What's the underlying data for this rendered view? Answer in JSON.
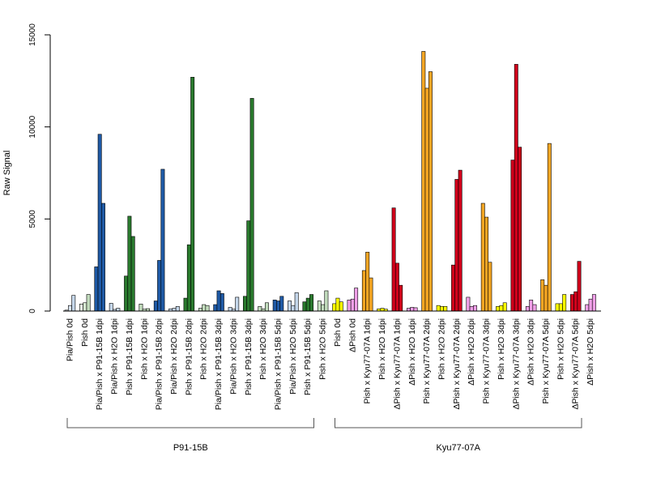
{
  "chart_data": {
    "type": "bar",
    "ylabel": "Raw Signal",
    "ylim": [
      0,
      15000
    ],
    "yticks": [
      0,
      5000,
      10000,
      15000
    ],
    "grid": false,
    "groups": [
      {
        "name": "P91-15B",
        "bars": [
          {
            "label": "Pia/Pish 0d",
            "values": [
              50,
              300,
              850
            ],
            "colors": [
              "#f0f4fa",
              "#dbe6f2",
              "#c4d6ea"
            ]
          },
          {
            "label": "Pish 0d",
            "values": [
              380,
              450,
              900
            ],
            "colors": [
              "#eaf3e8",
              "#d6e9d2",
              "#c2dcbd"
            ]
          },
          {
            "label": "Pia/Pish x P91-15B 1dpi",
            "values": [
              2400,
              9600,
              5850
            ],
            "colors": [
              "#1f5aa6",
              "#1f5aa6",
              "#1f5aa6"
            ]
          },
          {
            "label": "Pia/Pish x H2O 1dpi",
            "values": [
              420,
              90,
              150
            ],
            "colors": [
              "#c4d6ea",
              "#c4d6ea",
              "#c4d6ea"
            ]
          },
          {
            "label": "Pish x P91-15B 1dpi",
            "values": [
              1900,
              5150,
              4050
            ],
            "colors": [
              "#2a7a2e",
              "#2a7a2e",
              "#2a7a2e"
            ]
          },
          {
            "label": "Pish x H2O 1dpi",
            "values": [
              380,
              100,
              130
            ],
            "colors": [
              "#c2dcbd",
              "#c2dcbd",
              "#c2dcbd"
            ]
          },
          {
            "label": "Pia/Pish x P91-15B 2dpi",
            "values": [
              550,
              2750,
              7700
            ],
            "colors": [
              "#1f5aa6",
              "#1f5aa6",
              "#1f5aa6"
            ]
          },
          {
            "label": "Pia/Pish x H2O 2dpi",
            "values": [
              120,
              150,
              250
            ],
            "colors": [
              "#c4d6ea",
              "#c4d6ea",
              "#c4d6ea"
            ]
          },
          {
            "label": "Pish x P91-15B 2dpi",
            "values": [
              700,
              3600,
              12700
            ],
            "colors": [
              "#2a7a2e",
              "#2a7a2e",
              "#2a7a2e"
            ]
          },
          {
            "label": "Pish x H2O 2dpi",
            "values": [
              150,
              350,
              300
            ],
            "colors": [
              "#c2dcbd",
              "#c2dcbd",
              "#c2dcbd"
            ]
          },
          {
            "label": "Pia/Pish x P91-15B 3dpi",
            "values": [
              350,
              1100,
              950
            ],
            "colors": [
              "#1f5aa6",
              "#1f5aa6",
              "#1f5aa6"
            ]
          },
          {
            "label": "Pia/Pish x H2O 3dpi",
            "values": [
              200,
              100,
              750
            ],
            "colors": [
              "#c4d6ea",
              "#c4d6ea",
              "#c4d6ea"
            ]
          },
          {
            "label": "Pish x P91-15B 3dpi",
            "values": [
              800,
              4900,
              11550
            ],
            "colors": [
              "#2a7a2e",
              "#2a7a2e",
              "#2a7a2e"
            ]
          },
          {
            "label": "Pish x H2O 3dpi",
            "values": [
              250,
              120,
              450
            ],
            "colors": [
              "#c2dcbd",
              "#c2dcbd",
              "#c2dcbd"
            ]
          },
          {
            "label": "Pia/Pish x P91-15B 5dpi",
            "values": [
              600,
              550,
              800
            ],
            "colors": [
              "#1f5aa6",
              "#1f5aa6",
              "#1f5aa6"
            ]
          },
          {
            "label": "Pia/Pish x H2O 5dpi",
            "values": [
              550,
              300,
              1000
            ],
            "colors": [
              "#c4d6ea",
              "#c4d6ea",
              "#c4d6ea"
            ]
          },
          {
            "label": "Pish x P91-15B 5dpi",
            "values": [
              500,
              700,
              900
            ],
            "colors": [
              "#2a7a2e",
              "#2a7a2e",
              "#2a7a2e"
            ]
          },
          {
            "label": "Pish x H2O 5dpi",
            "values": [
              550,
              350,
              1100
            ],
            "colors": [
              "#c2dcbd",
              "#c2dcbd",
              "#c2dcbd"
            ]
          }
        ]
      },
      {
        "name": "Kyu77-07A",
        "bars": [
          {
            "label": "Pish 0d",
            "values": [
              400,
              700,
              500
            ],
            "colors": [
              "#ffff00",
              "#ffff00",
              "#ffff00"
            ]
          },
          {
            "label": "ΔPish 0d",
            "values": [
              600,
              650,
              1250
            ],
            "colors": [
              "#f0a0e8",
              "#f0a0e8",
              "#f0a0e8"
            ]
          },
          {
            "label": "Pish x Kyu77-07A 1dpi",
            "values": [
              2200,
              3200,
              1800
            ],
            "colors": [
              "#f5a623",
              "#f5a623",
              "#f5a623"
            ]
          },
          {
            "label": "Pish x H2O 1dpi",
            "values": [
              120,
              150,
              100
            ],
            "colors": [
              "#ffff00",
              "#ffff00",
              "#ffff00"
            ]
          },
          {
            "label": "ΔPish x Kyu77-07A 1dpi",
            "values": [
              5600,
              2600,
              1400
            ],
            "colors": [
              "#d0021b",
              "#d0021b",
              "#d0021b"
            ]
          },
          {
            "label": "ΔPish x H2O 1dpi",
            "values": [
              150,
              200,
              180
            ],
            "colors": [
              "#f0a0e8",
              "#f0a0e8",
              "#f0a0e8"
            ]
          },
          {
            "label": "Pish x Kyu77-07A 2dpi",
            "values": [
              14100,
              12100,
              13000
            ],
            "colors": [
              "#f5a623",
              "#f5a623",
              "#f5a623"
            ]
          },
          {
            "label": "Pish x H2O 2dpi",
            "values": [
              300,
              250,
              250
            ],
            "colors": [
              "#ffff00",
              "#ffff00",
              "#ffff00"
            ]
          },
          {
            "label": "ΔPish x Kyu77-07A 2dpi",
            "values": [
              2500,
              7150,
              7650
            ],
            "colors": [
              "#d0021b",
              "#d0021b",
              "#d0021b"
            ]
          },
          {
            "label": "ΔPish x H2O 2dpi",
            "values": [
              750,
              250,
              300
            ],
            "colors": [
              "#f0a0e8",
              "#f0a0e8",
              "#f0a0e8"
            ]
          },
          {
            "label": "Pish x Kyu77-07A 3dpi",
            "values": [
              5850,
              5100,
              2650
            ],
            "colors": [
              "#f5a623",
              "#f5a623",
              "#f5a623"
            ]
          },
          {
            "label": "Pish x H2O 3dpi",
            "values": [
              250,
              300,
              450
            ],
            "colors": [
              "#ffff00",
              "#ffff00",
              "#ffff00"
            ]
          },
          {
            "label": "ΔPish x Kyu77-07A 3dpi",
            "values": [
              8200,
              13400,
              8900
            ],
            "colors": [
              "#d0021b",
              "#d0021b",
              "#d0021b"
            ]
          },
          {
            "label": "ΔPish x H2O 3dpi",
            "values": [
              250,
              600,
              350
            ],
            "colors": [
              "#f0a0e8",
              "#f0a0e8",
              "#f0a0e8"
            ]
          },
          {
            "label": "Pish x Kyu77-07A 5dpi",
            "values": [
              1700,
              1400,
              9100
            ],
            "colors": [
              "#f5a623",
              "#f5a623",
              "#f5a623"
            ]
          },
          {
            "label": "Pish x H2O 5dpi",
            "values": [
              400,
              400,
              900
            ],
            "colors": [
              "#ffff00",
              "#ffff00",
              "#ffff00"
            ]
          },
          {
            "label": "ΔPish x Kyu77-07A 5dpi",
            "values": [
              900,
              1050,
              2700
            ],
            "colors": [
              "#d0021b",
              "#d0021b",
              "#d0021b"
            ]
          },
          {
            "label": "ΔPish x H2O 5dpi",
            "values": [
              350,
              650,
              900
            ],
            "colors": [
              "#f0a0e8",
              "#f0a0e8",
              "#f0a0e8"
            ]
          }
        ]
      }
    ]
  }
}
